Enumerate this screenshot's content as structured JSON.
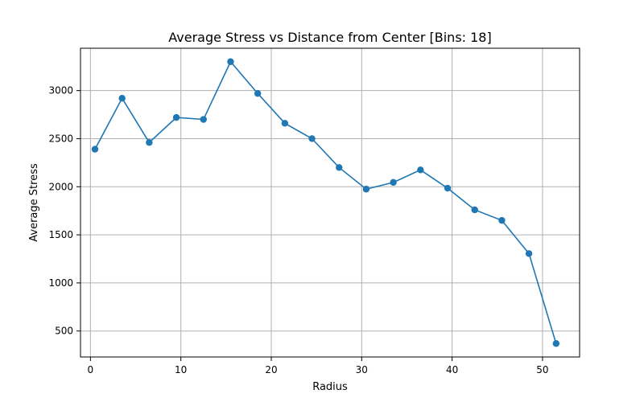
{
  "chart_data": {
    "type": "line",
    "title": "Average Stress vs Distance from Center [Bins: 18]",
    "xlabel": "Radius",
    "ylabel": "Average Stress",
    "xlim": [
      -1.1,
      54.1
    ],
    "ylim": [
      230,
      3440
    ],
    "xticks": [
      0,
      10,
      20,
      30,
      40,
      50
    ],
    "yticks": [
      500,
      1000,
      1500,
      2000,
      2500,
      3000
    ],
    "grid": true,
    "series": [
      {
        "color": "#1f77b4",
        "marker": "circle",
        "x": [
          0.5,
          3.5,
          6.5,
          9.5,
          12.5,
          15.5,
          18.5,
          21.5,
          24.5,
          27.5,
          30.5,
          33.5,
          36.5,
          39.5,
          42.5,
          45.5,
          48.5,
          51.5
        ],
        "y": [
          2390,
          2920,
          2460,
          2720,
          2700,
          3300,
          2970,
          2660,
          2500,
          2200,
          1975,
          2045,
          2175,
          1985,
          1760,
          1650,
          1305,
          370
        ]
      }
    ]
  }
}
